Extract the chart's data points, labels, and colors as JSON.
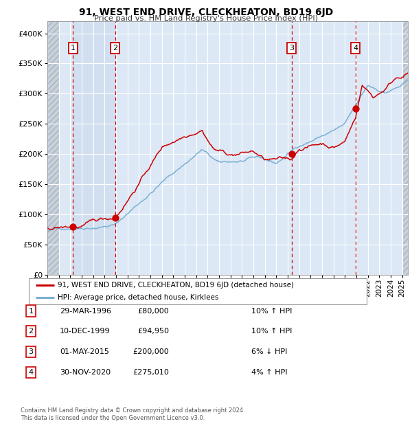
{
  "title": "91, WEST END DRIVE, CLECKHEATON, BD19 6JD",
  "subtitle": "Price paid vs. HM Land Registry's House Price Index (HPI)",
  "ylim": [
    0,
    420000
  ],
  "yticks": [
    0,
    50000,
    100000,
    150000,
    200000,
    250000,
    300000,
    350000,
    400000
  ],
  "xlim_start": 1994.0,
  "xlim_end": 2025.5,
  "sale_dates": [
    1996.24,
    1999.92,
    2015.33,
    2020.92
  ],
  "sale_prices": [
    80000,
    94950,
    200000,
    275010
  ],
  "sale_labels": [
    "1",
    "2",
    "3",
    "4"
  ],
  "legend_property": "91, WEST END DRIVE, CLECKHEATON, BD19 6JD (detached house)",
  "legend_hpi": "HPI: Average price, detached house, Kirklees",
  "table_rows": [
    [
      "1",
      "29-MAR-1996",
      "£80,000",
      "10% ↑ HPI"
    ],
    [
      "2",
      "10-DEC-1999",
      "£94,950",
      "10% ↑ HPI"
    ],
    [
      "3",
      "01-MAY-2015",
      "£200,000",
      "6% ↓ HPI"
    ],
    [
      "4",
      "30-NOV-2020",
      "£275,010",
      "4% ↑ HPI"
    ]
  ],
  "footnote": "Contains HM Land Registry data © Crown copyright and database right 2024.\nThis data is licensed under the Open Government Licence v3.0.",
  "bg_color": "#ffffff",
  "plot_bg": "#dce8f5",
  "red_line_color": "#cc0000",
  "blue_line_color": "#7ab0d4",
  "dashed_vline_color": "#cc0000",
  "sale_dot_color": "#cc0000",
  "shade_color": "#c8d8ec",
  "hatch_color": "#c0ccd8"
}
